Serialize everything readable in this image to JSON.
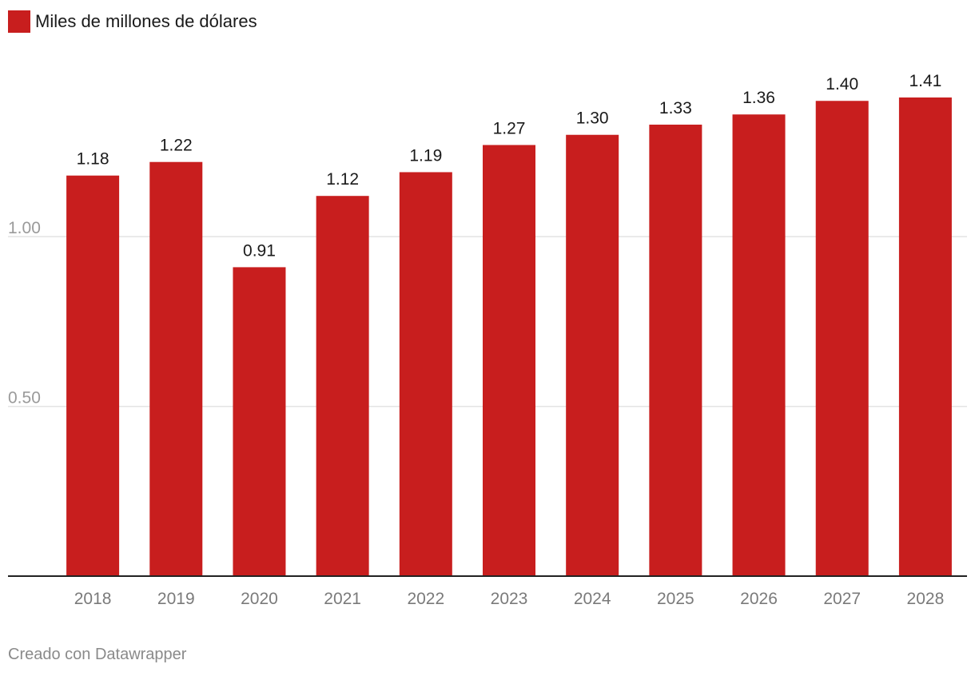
{
  "legend": {
    "label": "Miles de millones de dólares",
    "color": "#c81e1e"
  },
  "credit": "Creado con Datawrapper",
  "chart_data": {
    "type": "bar",
    "title": "",
    "xlabel": "",
    "ylabel": "",
    "categories": [
      "2018",
      "2019",
      "2020",
      "2021",
      "2022",
      "2023",
      "2024",
      "2025",
      "2026",
      "2027",
      "2028"
    ],
    "values": [
      1.18,
      1.22,
      0.91,
      1.12,
      1.19,
      1.27,
      1.3,
      1.33,
      1.36,
      1.4,
      1.41
    ],
    "value_labels": [
      "1.18",
      "1.22",
      "0.91",
      "1.12",
      "1.19",
      "1.27",
      "1.30",
      "1.33",
      "1.36",
      "1.40",
      "1.41"
    ],
    "series_name": "Miles de millones de dólares",
    "ylim": [
      0,
      1.41
    ],
    "yticks": [
      0.5,
      1.0
    ],
    "ytick_labels": [
      "0.50",
      "1.00"
    ],
    "grid": true,
    "legend_position": "top-left",
    "bar_color": "#c81e1e",
    "grid_color": "#e3e3e3",
    "axis_color": "#222222"
  }
}
